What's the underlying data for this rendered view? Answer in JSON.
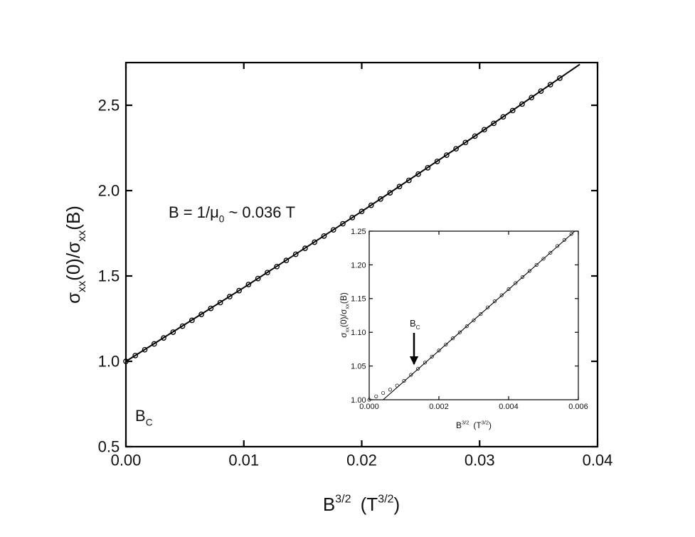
{
  "chart_data": [
    {
      "type": "scatter",
      "xlabel": [
        "B",
        "3/2",
        "(T",
        "3/2",
        ")"
      ],
      "ylabel": [
        "σ",
        "xx",
        "(0)/σ",
        "xx",
        "(B)"
      ],
      "xlim": [
        0,
        0.04
      ],
      "ylim": [
        0.5,
        2.75
      ],
      "xticks": [
        {
          "value": 0,
          "label": "0.00"
        },
        0.01,
        0.02,
        0.03,
        0.04
      ],
      "yticks": [
        0.5,
        {
          "value": 1,
          "label": "1.0"
        },
        1.5,
        {
          "value": 2,
          "label": "2.0"
        },
        2.5
      ],
      "annotations": [
        {
          "text": [
            "B =  1/μ",
            "0",
            " ~ 0.036 T"
          ]
        },
        {
          "text": [
            "B",
            "C"
          ]
        }
      ],
      "series": [
        {
          "style": "markers",
          "color": "#000000",
          "x": [
            0,
            0.0008,
            0.0016,
            0.0024,
            0.0032,
            0.004,
            0.0048,
            0.0056,
            0.0064,
            0.0072,
            0.008,
            0.0088,
            0.0096,
            0.0104,
            0.0112,
            0.012,
            0.0128,
            0.0136,
            0.0144,
            0.0152,
            0.016,
            0.0168,
            0.0176,
            0.0184,
            0.0192,
            0.02,
            0.0208,
            0.0216,
            0.0224,
            0.0232,
            0.024,
            0.0248,
            0.0256,
            0.0264,
            0.0272,
            0.028,
            0.0288,
            0.0296,
            0.0304,
            0.0312,
            0.032,
            0.0328,
            0.0336,
            0.0344,
            0.0352,
            0.036,
            0.0368
          ],
          "values": [
            1.0,
            1.034,
            1.068,
            1.102,
            1.137,
            1.171,
            1.206,
            1.24,
            1.275,
            1.31,
            1.344,
            1.379,
            1.414,
            1.45,
            1.485,
            1.52,
            1.555,
            1.591,
            1.627,
            1.662,
            1.698,
            1.734,
            1.77,
            1.806,
            1.842,
            1.878,
            1.914,
            1.951,
            1.987,
            2.024,
            2.06,
            2.097,
            2.134,
            2.171,
            2.208,
            2.245,
            2.282,
            2.319,
            2.357,
            2.394,
            2.432,
            2.469,
            2.507,
            2.545,
            2.583,
            2.621,
            2.659
          ]
        },
        {
          "style": "line",
          "color": "#000000",
          "x": [
            0,
            0.01,
            0.02,
            0.03,
            0.0385
          ],
          "values": [
            1.0,
            1.432,
            1.878,
            2.338,
            2.74
          ]
        }
      ]
    },
    {
      "type": "scatter",
      "xlabel": [
        "B",
        "3/2",
        "(T",
        "3/2",
        ")"
      ],
      "ylabel": [
        "σ",
        "xx",
        "(0)/σ",
        "xx",
        "(B)"
      ],
      "xlim": [
        0,
        0.006
      ],
      "ylim": [
        1.0,
        1.25
      ],
      "xticks": [
        {
          "value": 0,
          "label": "0.000"
        },
        0.002,
        0.004,
        0.006
      ],
      "yticks": [
        {
          "value": 1,
          "label": "1.00"
        },
        1.05,
        {
          "value": 1.1,
          "label": "1.10"
        },
        1.15,
        {
          "value": 1.2,
          "label": "1.20"
        },
        1.25
      ],
      "annotations": [
        {
          "text": [
            "B",
            "C"
          ]
        }
      ],
      "series": [
        {
          "style": "markers",
          "color": "#000000",
          "x": [
            0,
            0.0002,
            0.0004,
            0.0006,
            0.0008,
            0.001,
            0.0012,
            0.0014,
            0.0016,
            0.0018,
            0.002,
            0.0022,
            0.0024,
            0.0026,
            0.0028,
            0.003,
            0.0032,
            0.0034,
            0.0036,
            0.0038,
            0.004,
            0.0042,
            0.0044,
            0.0046,
            0.0048,
            0.005,
            0.0052,
            0.0054,
            0.0056,
            0.0058
          ],
          "values": [
            1.0,
            1.005,
            1.01,
            1.015,
            1.021,
            1.028,
            1.037,
            1.046,
            1.055,
            1.064,
            1.073,
            1.082,
            1.091,
            1.1,
            1.109,
            1.118,
            1.127,
            1.137,
            1.146,
            1.155,
            1.164,
            1.173,
            1.182,
            1.191,
            1.2,
            1.209,
            1.218,
            1.228,
            1.237,
            1.246
          ]
        },
        {
          "style": "line",
          "color": "#000000",
          "x": [
            0.0004,
            0.0059
          ],
          "values": [
            1.0,
            1.25
          ]
        }
      ]
    }
  ]
}
